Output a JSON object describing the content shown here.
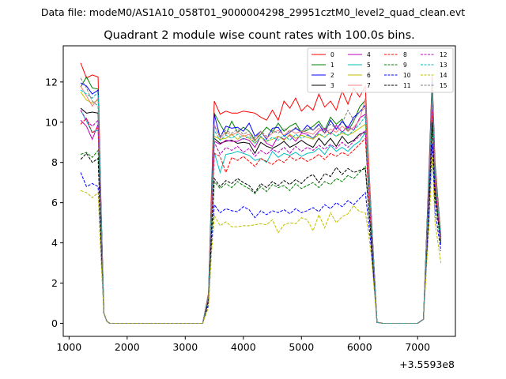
{
  "suptitle": "Data file: modeM0/AS1A10_058T01_9000004298_29951cztM0_level2_quad_clean.evt",
  "chart_data": {
    "type": "line",
    "title": "Quadrant 2 module wise count rates with 100.0s bins.",
    "xlabel": "",
    "ylabel": "",
    "x_offset_label": "+3.5593e8",
    "xlim": [
      900,
      7650
    ],
    "ylim": [
      -0.65,
      13.8
    ],
    "xticks": [
      1000,
      2000,
      3000,
      4000,
      5000,
      6000,
      7000
    ],
    "yticks": [
      0,
      2,
      4,
      6,
      8,
      10,
      12
    ],
    "grid": false,
    "legend_position": "upper right",
    "x": [
      1200,
      1300,
      1400,
      1500,
      1550,
      1600,
      1650,
      1700,
      1800,
      1900,
      2000,
      2100,
      2200,
      2300,
      2400,
      2500,
      2600,
      2700,
      2800,
      2900,
      3000,
      3100,
      3200,
      3300,
      3400,
      3450,
      3500,
      3600,
      3700,
      3800,
      3900,
      4000,
      4100,
      4200,
      4300,
      4400,
      4500,
      4600,
      4700,
      4800,
      4900,
      5000,
      5100,
      5200,
      5300,
      5400,
      5500,
      5600,
      5700,
      5800,
      5900,
      6000,
      6100,
      6150,
      6200,
      6300,
      6400,
      6500,
      6600,
      6700,
      6800,
      6900,
      7000,
      7100,
      7200,
      7250,
      7300,
      7400
    ],
    "series": [
      {
        "name": "0",
        "color": "#ff0000",
        "dash": "solid",
        "values": [
          12.95,
          12.2,
          12.35,
          12.25,
          6,
          0.5,
          0.1,
          0,
          0,
          0,
          0,
          0,
          0,
          0,
          0,
          0,
          0,
          0,
          0,
          0,
          0,
          0,
          0,
          0,
          1.5,
          6.5,
          11.05,
          10.4,
          10.55,
          10.45,
          10.45,
          10.55,
          10.5,
          10.45,
          10.25,
          10.1,
          10.6,
          10.1,
          11.05,
          10.7,
          11.2,
          10.55,
          10.85,
          10.6,
          11.4,
          10.75,
          11.05,
          10.6,
          11.55,
          10.9,
          11.7,
          11.25,
          11.8,
          8.5,
          5.5,
          0.05,
          0,
          0,
          0,
          0,
          0,
          0,
          0,
          0.2,
          8,
          12.3,
          8,
          4.3
        ]
      },
      {
        "name": "1",
        "color": "#008000",
        "dash": "solid",
        "values": [
          11.75,
          12.25,
          11.7,
          11.65,
          5.7,
          0.5,
          0.1,
          0,
          0,
          0,
          0,
          0,
          0,
          0,
          0,
          0,
          0,
          0,
          0,
          0,
          0,
          0,
          0,
          0,
          1.4,
          6,
          10.45,
          9.9,
          9.4,
          10.05,
          9.5,
          9.75,
          9.55,
          9.1,
          9.4,
          9.75,
          9.5,
          9.95,
          9.55,
          9.8,
          9.95,
          9.5,
          9.6,
          9.8,
          10.05,
          9.6,
          10.25,
          9.9,
          10.15,
          9.55,
          10.05,
          10.75,
          11.1,
          8,
          5.5,
          0.05,
          0,
          0,
          0,
          0,
          0,
          0,
          0,
          0.2,
          7.8,
          12.1,
          7.8,
          4.4
        ]
      },
      {
        "name": "2",
        "color": "#0000ff",
        "dash": "solid",
        "values": [
          11.95,
          11.8,
          11.4,
          11.6,
          5.8,
          0.5,
          0.1,
          0,
          0,
          0,
          0,
          0,
          0,
          0,
          0,
          0,
          0,
          0,
          0,
          0,
          0,
          0,
          0,
          0,
          1.4,
          6,
          10.4,
          9.25,
          9.8,
          9.7,
          9.75,
          9.55,
          9.95,
          9.3,
          9.55,
          9.15,
          9.7,
          9.75,
          9.3,
          9.5,
          9.7,
          9.5,
          9.85,
          9.6,
          9.9,
          9.45,
          10.1,
          9.65,
          10.05,
          9.7,
          10.25,
          10.5,
          10.85,
          7.9,
          5.5,
          0.05,
          0,
          0,
          0,
          0,
          0,
          0,
          0,
          0.2,
          7.7,
          12,
          7.6,
          4.2
        ]
      },
      {
        "name": "3",
        "color": "#000000",
        "dash": "solid",
        "values": [
          10.7,
          10.45,
          10.5,
          10.45,
          5.2,
          0.5,
          0.1,
          0,
          0,
          0,
          0,
          0,
          0,
          0,
          0,
          0,
          0,
          0,
          0,
          0,
          0,
          0,
          0,
          0,
          1.3,
          5.4,
          9.2,
          8.95,
          9.05,
          9.1,
          8.95,
          9,
          8.95,
          8.45,
          9,
          8.8,
          8.7,
          8.85,
          9.05,
          8.75,
          8.9,
          9.1,
          8.9,
          8.75,
          9.2,
          8.85,
          9.2,
          8.8,
          9.3,
          8.95,
          9.1,
          9.4,
          9.5,
          7,
          5,
          0.05,
          0,
          0,
          0,
          0,
          0,
          0,
          0,
          0.2,
          6.8,
          11.2,
          7,
          4.2
        ]
      },
      {
        "name": "4",
        "color": "#bf00bf",
        "dash": "solid",
        "values": [
          10.1,
          9.8,
          9.15,
          9.9,
          5,
          0.5,
          0.1,
          0,
          0,
          0,
          0,
          0,
          0,
          0,
          0,
          0,
          0,
          0,
          0,
          0,
          0,
          0,
          0,
          0,
          1.3,
          5.5,
          9.05,
          8.9,
          9.1,
          9.05,
          9.05,
          9.2,
          9.1,
          8.75,
          9.3,
          8.95,
          8.8,
          9.3,
          9.15,
          9.35,
          9.05,
          9.45,
          9.4,
          9.2,
          9.55,
          9.7,
          9.4,
          9.85,
          9.5,
          9.8,
          9.6,
          10.2,
          10.4,
          7.5,
          5.2,
          0.05,
          0,
          0,
          0,
          0,
          0,
          0,
          0,
          0.2,
          7.2,
          11.6,
          7.4,
          4.2
        ]
      },
      {
        "name": "5",
        "color": "#00bfbf",
        "dash": "solid",
        "values": [
          10.6,
          10.05,
          9.5,
          9.6,
          4.8,
          0.5,
          0.1,
          0,
          0,
          0,
          0,
          0,
          0,
          0,
          0,
          0,
          0,
          0,
          0,
          0,
          0,
          0,
          0,
          0,
          1.2,
          5.1,
          8.5,
          7.5,
          8.4,
          8.45,
          8.55,
          8.45,
          8.35,
          8.1,
          8.2,
          8,
          8.55,
          8.25,
          8.45,
          8.35,
          8.5,
          8.3,
          8.45,
          8.5,
          8.7,
          8.4,
          8.85,
          8.55,
          8.75,
          8.55,
          8.85,
          9.05,
          9.5,
          7,
          4.8,
          0.05,
          0,
          0,
          0,
          0,
          0,
          0,
          0,
          0.2,
          6.8,
          10.8,
          6.8,
          4
        ]
      },
      {
        "name": "6",
        "color": "#bfbf00",
        "dash": "solid",
        "values": [
          11.5,
          11.1,
          10.95,
          11.1,
          5.4,
          0.5,
          0.1,
          0,
          0,
          0,
          0,
          0,
          0,
          0,
          0,
          0,
          0,
          0,
          0,
          0,
          0,
          0,
          0,
          0,
          1.3,
          5.6,
          9.3,
          9.15,
          9.2,
          9.4,
          9.15,
          9.35,
          9.2,
          8.95,
          9.25,
          9.05,
          9.15,
          9.3,
          9.1,
          9.4,
          9.2,
          9.35,
          9.25,
          9.15,
          9.4,
          9.25,
          9.5,
          9.3,
          9.45,
          9.35,
          9.5,
          9.7,
          9.9,
          7.3,
          5,
          0.05,
          0,
          0,
          0,
          0,
          0,
          0,
          0,
          0.2,
          7,
          11.4,
          7.2,
          4.2
        ]
      },
      {
        "name": "7",
        "color": "#f08080",
        "dash": "solid",
        "values": [
          11.8,
          11.3,
          10.8,
          11.2,
          5.5,
          0.5,
          0.1,
          0,
          0,
          0,
          0,
          0,
          0,
          0,
          0,
          0,
          0,
          0,
          0,
          0,
          0,
          0,
          0,
          0,
          1.4,
          5.9,
          9.9,
          9.2,
          9.5,
          9.35,
          9.5,
          9.3,
          9.4,
          9.05,
          9.55,
          9.2,
          9.45,
          9.6,
          9.35,
          9.6,
          9.45,
          9.55,
          9.5,
          9.4,
          9.7,
          9.45,
          9.65,
          9.5,
          9.8,
          9.55,
          9.75,
          10.1,
          11.2,
          8.2,
          5.4,
          0.05,
          0,
          0,
          0,
          0,
          0,
          0,
          0,
          0.2,
          7.4,
          11.8,
          7.6,
          4.3
        ]
      },
      {
        "name": "8",
        "color": "#ff0000",
        "dash": "dashed",
        "values": [
          9.9,
          10.2,
          9.45,
          9.75,
          4.9,
          0.5,
          0.1,
          0,
          0,
          0,
          0,
          0,
          0,
          0,
          0,
          0,
          0,
          0,
          0,
          0,
          0,
          0,
          0,
          0,
          1.2,
          5,
          8.45,
          8.3,
          7.5,
          8.25,
          8.1,
          8.3,
          8.05,
          7.8,
          8.2,
          8.05,
          7.9,
          8.15,
          8,
          8.3,
          8.1,
          8.25,
          8.05,
          8.2,
          8.4,
          8.15,
          8.45,
          8.3,
          8.5,
          8.35,
          8.6,
          8.9,
          9.2,
          6.8,
          4.7,
          0.05,
          0,
          0,
          0,
          0,
          0,
          0,
          0,
          0.2,
          6.7,
          10.6,
          6.7,
          4
        ]
      },
      {
        "name": "9",
        "color": "#008000",
        "dash": "dashed",
        "values": [
          8.4,
          8.5,
          8.25,
          8.6,
          4.3,
          0.5,
          0.1,
          0,
          0,
          0,
          0,
          0,
          0,
          0,
          0,
          0,
          0,
          0,
          0,
          0,
          0,
          0,
          0,
          0,
          1.1,
          4.2,
          7.05,
          6.7,
          6.95,
          6.75,
          7.05,
          6.85,
          6.7,
          6.45,
          6.8,
          6.55,
          6.9,
          6.75,
          6.85,
          6.6,
          6.95,
          6.7,
          6.85,
          7,
          6.75,
          7.05,
          6.9,
          7.2,
          7.05,
          7.35,
          7.2,
          7.5,
          7.8,
          6,
          4.3,
          0.05,
          0,
          0,
          0,
          0,
          0,
          0,
          0,
          0.2,
          6.2,
          9.8,
          6.2,
          3.9
        ]
      },
      {
        "name": "10",
        "color": "#0000ff",
        "dash": "dashed",
        "values": [
          7.5,
          6.8,
          6.95,
          6.8,
          3.4,
          0.5,
          0.1,
          0,
          0,
          0,
          0,
          0,
          0,
          0,
          0,
          0,
          0,
          0,
          0,
          0,
          0,
          0,
          0,
          0,
          0.9,
          3.6,
          5.9,
          5.5,
          5.7,
          5.6,
          5.55,
          5.8,
          5.65,
          5.25,
          5.6,
          5.4,
          5.6,
          5.5,
          5.65,
          5.45,
          5.7,
          5.5,
          5.6,
          5.75,
          5.55,
          5.9,
          5.7,
          6,
          5.8,
          6.1,
          5.9,
          6.2,
          6.5,
          5.2,
          3.8,
          0.05,
          0,
          0,
          0,
          0,
          0,
          0,
          0,
          0.2,
          5.6,
          8.9,
          5.6,
          3.6
        ]
      },
      {
        "name": "11",
        "color": "#000000",
        "dash": "dashed",
        "values": [
          8.15,
          8.45,
          8,
          8.2,
          4.1,
          0.5,
          0.1,
          0,
          0,
          0,
          0,
          0,
          0,
          0,
          0,
          0,
          0,
          0,
          0,
          0,
          0,
          0,
          0,
          0,
          1.1,
          4.4,
          7.2,
          6.8,
          7.1,
          6.95,
          7.2,
          7,
          6.85,
          6.5,
          6.95,
          6.75,
          7.05,
          6.85,
          7.1,
          6.9,
          7.15,
          6.95,
          7.25,
          7.4,
          7,
          7.45,
          7.3,
          7.75,
          7.4,
          7.7,
          7.5,
          7.6,
          7.7,
          6,
          4.2,
          0.05,
          0,
          0,
          0,
          0,
          0,
          0,
          0,
          0.2,
          6.3,
          10,
          6.4,
          4
        ]
      },
      {
        "name": "12",
        "color": "#bf00bf",
        "dash": "dashed",
        "values": [
          10.6,
          10.1,
          9.8,
          10.1,
          5.05,
          0.5,
          0.1,
          0,
          0,
          0,
          0,
          0,
          0,
          0,
          0,
          0,
          0,
          0,
          0,
          0,
          0,
          0,
          0,
          0,
          1.3,
          5.4,
          9,
          8.4,
          8.75,
          8.6,
          8.8,
          8.5,
          8.7,
          8.3,
          8.6,
          8.4,
          8.65,
          8.5,
          8.75,
          8.45,
          8.8,
          8.55,
          8.75,
          8.6,
          8.85,
          8.65,
          8.9,
          8.7,
          9,
          8.75,
          9.05,
          9.3,
          9.6,
          7.2,
          4.9,
          0.05,
          0,
          0,
          0,
          0,
          0,
          0,
          0,
          0.2,
          6.9,
          11,
          7,
          4.1
        ]
      },
      {
        "name": "13",
        "color": "#00bfbf",
        "dash": "dashed",
        "values": [
          11.6,
          11.4,
          11.2,
          11.5,
          5.7,
          0.5,
          0.1,
          0,
          0,
          0,
          0,
          0,
          0,
          0,
          0,
          0,
          0,
          0,
          0,
          0,
          0,
          0,
          0,
          0,
          1.4,
          5.8,
          9.6,
          9.1,
          9.35,
          9.2,
          9.4,
          9.15,
          9.3,
          8.95,
          9.3,
          9.05,
          9.25,
          9.1,
          9.35,
          9.1,
          9.4,
          9.2,
          9.35,
          9.2,
          9.45,
          9.25,
          9.5,
          9.3,
          9.55,
          9.35,
          9.6,
          9.9,
          10.3,
          7.6,
          5.2,
          0.05,
          0,
          0,
          0,
          0,
          0,
          0,
          0,
          0.2,
          7.3,
          11.5,
          7.4,
          4.2
        ]
      },
      {
        "name": "14",
        "color": "#bfbf00",
        "dash": "dashed",
        "values": [
          6.6,
          6.5,
          6.25,
          6.5,
          3.2,
          0.5,
          0.1,
          0,
          0,
          0,
          0,
          0,
          0,
          0,
          0,
          0,
          0,
          0,
          0,
          0,
          0,
          0,
          0,
          0,
          0.8,
          3.4,
          5.35,
          4.85,
          5.05,
          4.8,
          4.8,
          4.85,
          4.85,
          4.9,
          4.95,
          4.9,
          5.15,
          4.5,
          4.9,
          5,
          4.95,
          5.25,
          5.15,
          4.6,
          5.4,
          4.75,
          5.5,
          5,
          5.3,
          5.45,
          5.85,
          5.55,
          5.5,
          4.6,
          3.4,
          0.05,
          0,
          0,
          0,
          0,
          0,
          0,
          0,
          0.2,
          5,
          8.3,
          5,
          3
        ]
      },
      {
        "name": "15",
        "color": "#808080",
        "dash": "dashed",
        "values": [
          12.2,
          11.7,
          11.05,
          10.8,
          5.4,
          0.5,
          0.1,
          0,
          0,
          0,
          0,
          0,
          0,
          0,
          0,
          0,
          0,
          0,
          0,
          0,
          0,
          0,
          0,
          0,
          1.4,
          5.9,
          9.8,
          9.3,
          9.6,
          9.45,
          9.65,
          9.4,
          9.55,
          9.2,
          9.55,
          9.3,
          9.6,
          9.45,
          9.7,
          9.5,
          9.75,
          9.55,
          9.7,
          9.6,
          9.85,
          9.65,
          9.9,
          9.7,
          9.95,
          10.6,
          10.1,
          10.5,
          10.7,
          7.9,
          5.4,
          0.05,
          0,
          0,
          0,
          0,
          0,
          0,
          0,
          0.2,
          7.4,
          11.9,
          7.6,
          4.3
        ]
      }
    ]
  }
}
